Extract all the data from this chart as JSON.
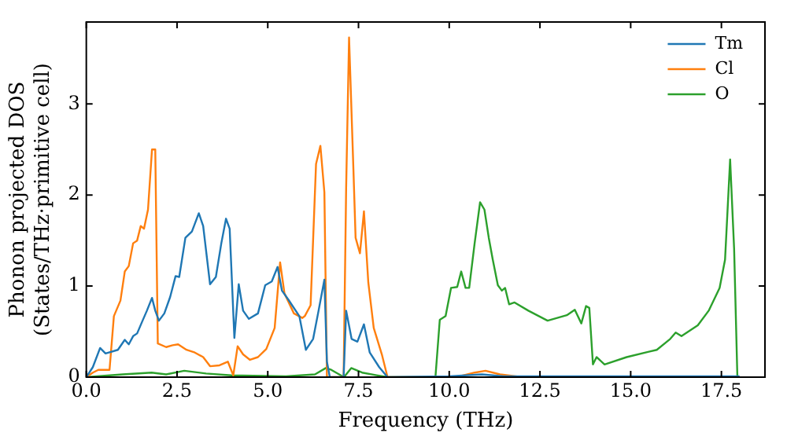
{
  "chart_data": {
    "type": "line",
    "xlabel": "Frequency (THz)",
    "ylabel": "Phonon projected DOS\n(States/THz·primitive cell)",
    "xlim": [
      0,
      18.7
    ],
    "ylim": [
      0,
      3.9
    ],
    "xticks": [
      {
        "value": 0,
        "label": "0.0"
      },
      {
        "value": 2.5,
        "label": "2.5"
      },
      {
        "value": 5,
        "label": "5.0"
      },
      {
        "value": 7.5,
        "label": "7.5"
      },
      {
        "value": 10,
        "label": "10.0"
      },
      {
        "value": 12.5,
        "label": "12.5"
      },
      {
        "value": 15,
        "label": "15.0"
      },
      {
        "value": 17.5,
        "label": "17.5"
      }
    ],
    "yticks": [
      0,
      1,
      2,
      3
    ],
    "legend": "top right",
    "marker": "none",
    "line_style": "solid",
    "series": [
      {
        "name": "Tm",
        "color": "#1f77b4",
        "x": [
          0,
          0.18,
          0.38,
          0.53,
          0.87,
          1.06,
          1.17,
          1.29,
          1.4,
          1.55,
          1.67,
          1.81,
          1.9,
          2.0,
          2.15,
          2.31,
          2.46,
          2.56,
          2.73,
          2.91,
          3.1,
          3.22,
          3.41,
          3.57,
          3.72,
          3.85,
          3.95,
          4.08,
          4.2,
          4.32,
          4.48,
          4.73,
          4.93,
          5.11,
          5.27,
          5.39,
          5.57,
          5.87,
          6.05,
          6.25,
          6.4,
          6.56,
          6.63,
          6.71,
          7.09,
          7.16,
          7.31,
          7.47,
          7.65,
          7.81,
          8.07,
          8.3,
          10.0,
          10.9,
          11.5,
          18.0
        ],
        "values": [
          0,
          0.11,
          0.32,
          0.26,
          0.3,
          0.41,
          0.36,
          0.45,
          0.48,
          0.62,
          0.73,
          0.87,
          0.73,
          0.62,
          0.7,
          0.88,
          1.11,
          1.1,
          1.53,
          1.6,
          1.8,
          1.66,
          1.02,
          1.1,
          1.47,
          1.74,
          1.63,
          0.43,
          1.02,
          0.73,
          0.64,
          0.7,
          1.01,
          1.05,
          1.21,
          0.95,
          0.85,
          0.67,
          0.3,
          0.42,
          0.73,
          1.07,
          0.17,
          0,
          0,
          0.73,
          0.42,
          0.39,
          0.58,
          0.27,
          0.11,
          0,
          0.01,
          0.03,
          0.01,
          0.01
        ]
      },
      {
        "name": "Cl",
        "color": "#ff7f0e",
        "x": [
          0,
          0.18,
          0.33,
          0.64,
          0.76,
          0.94,
          1.06,
          1.17,
          1.29,
          1.4,
          1.5,
          1.59,
          1.7,
          1.81,
          1.9,
          1.97,
          2.2,
          2.38,
          2.53,
          2.76,
          2.99,
          3.22,
          3.41,
          3.67,
          3.9,
          4.05,
          4.17,
          4.32,
          4.51,
          4.73,
          4.96,
          5.19,
          5.34,
          5.46,
          5.72,
          5.95,
          6.02,
          6.18,
          6.33,
          6.45,
          6.56,
          6.63,
          7.09,
          7.16,
          7.24,
          7.36,
          7.42,
          7.54,
          7.65,
          7.77,
          7.92,
          8.15,
          8.3,
          10.2,
          10.7,
          11.0,
          11.4,
          12.0
        ],
        "values": [
          0,
          0.05,
          0.08,
          0.08,
          0.67,
          0.84,
          1.16,
          1.22,
          1.47,
          1.5,
          1.66,
          1.63,
          1.84,
          2.5,
          2.5,
          0.37,
          0.33,
          0.35,
          0.36,
          0.3,
          0.27,
          0.22,
          0.12,
          0.13,
          0.17,
          0.02,
          0.34,
          0.25,
          0.19,
          0.22,
          0.31,
          0.54,
          1.26,
          0.92,
          0.7,
          0.65,
          0.67,
          0.79,
          2.34,
          2.54,
          2.03,
          0,
          0,
          2.09,
          3.73,
          2.28,
          1.53,
          1.36,
          1.82,
          1.04,
          0.54,
          0.24,
          0,
          0,
          0.05,
          0.07,
          0.03,
          0
        ]
      },
      {
        "name": "O",
        "color": "#2ca02c",
        "x": [
          0,
          1.0,
          1.8,
          2.2,
          2.7,
          3.3,
          4.0,
          5.5,
          6.3,
          6.6,
          6.75,
          7.1,
          7.3,
          7.6,
          8.0,
          8.3,
          9.62,
          9.74,
          9.9,
          10.05,
          10.22,
          10.33,
          10.45,
          10.55,
          10.7,
          10.85,
          10.97,
          11.09,
          11.2,
          11.34,
          11.45,
          11.54,
          11.65,
          11.8,
          12.18,
          12.71,
          13.24,
          13.46,
          13.64,
          13.77,
          13.86,
          13.96,
          14.06,
          14.28,
          14.89,
          15.5,
          15.72,
          16.09,
          16.24,
          16.4,
          16.85,
          17.15,
          17.45,
          17.6,
          17.74,
          17.85,
          17.94
        ],
        "values": [
          0,
          0.03,
          0.05,
          0.03,
          0.07,
          0.04,
          0.02,
          0.01,
          0.03,
          0.1,
          0.08,
          0,
          0.1,
          0.05,
          0.02,
          0,
          0,
          0.63,
          0.67,
          0.98,
          0.99,
          1.16,
          0.98,
          0.98,
          1.47,
          1.92,
          1.84,
          1.53,
          1.29,
          1.01,
          0.95,
          0.98,
          0.8,
          0.82,
          0.73,
          0.62,
          0.68,
          0.74,
          0.59,
          0.78,
          0.76,
          0.14,
          0.22,
          0.14,
          0.22,
          0.28,
          0.3,
          0.42,
          0.49,
          0.45,
          0.57,
          0.73,
          0.98,
          1.29,
          2.39,
          1.41,
          0
        ]
      }
    ]
  }
}
